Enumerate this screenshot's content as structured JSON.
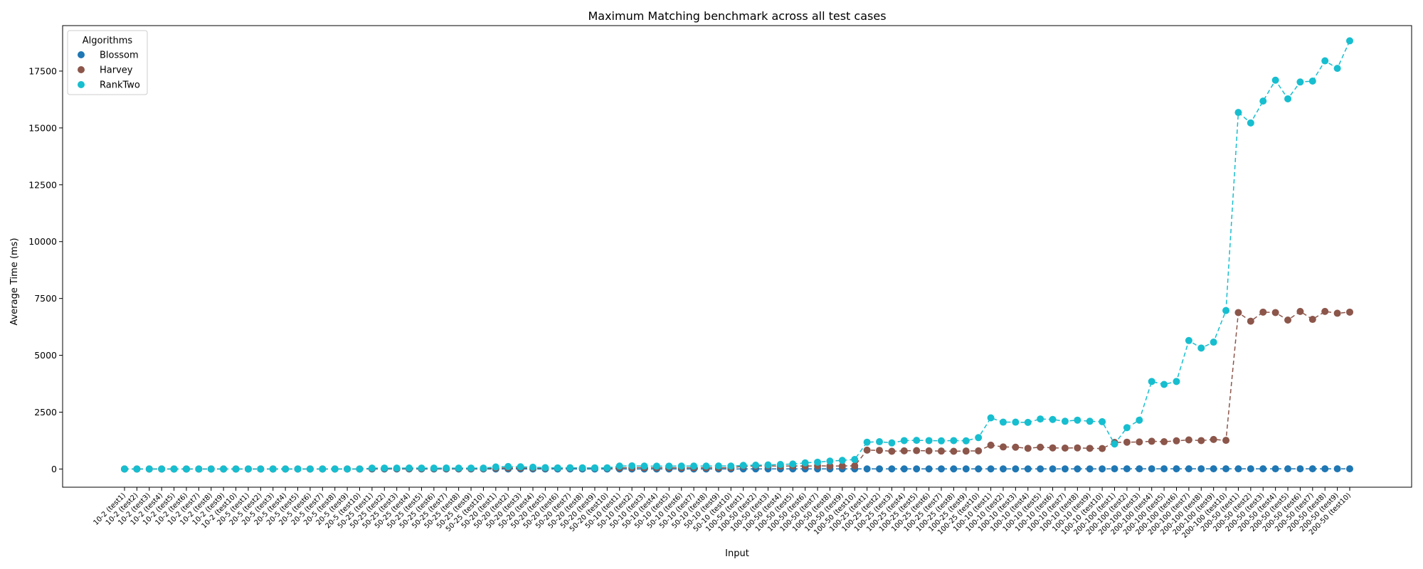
{
  "chart_data": {
    "type": "line",
    "title": "Maximum Matching benchmark across all test cases",
    "xlabel": "Input",
    "ylabel": "Average Time (ms)",
    "ylim": [
      -800,
      19500
    ],
    "yticks": [
      0,
      2500,
      5000,
      7500,
      10000,
      12500,
      15000,
      17500
    ],
    "grid": false,
    "legend": {
      "title": "Algorithms",
      "placement": "top-left"
    },
    "categories": [
      "10-2 (test1)",
      "10-2 (test2)",
      "10-2 (test3)",
      "10-2 (test4)",
      "10-2 (test5)",
      "10-2 (test6)",
      "10-2 (test7)",
      "10-2 (test8)",
      "10-2 (test9)",
      "10-2 (test10)",
      "20-5 (test1)",
      "20-5 (test2)",
      "20-5 (test3)",
      "20-5 (test4)",
      "20-5 (test5)",
      "20-5 (test6)",
      "20-5 (test7)",
      "20-5 (test8)",
      "20-5 (test9)",
      "20-5 (test10)",
      "50-25 (test1)",
      "50-25 (test2)",
      "50-25 (test3)",
      "50-25 (test4)",
      "50-25 (test5)",
      "50-25 (test6)",
      "50-25 (test7)",
      "50-25 (test8)",
      "50-25 (test9)",
      "50-25 (test10)",
      "50-20 (test1)",
      "50-20 (test2)",
      "50-20 (test3)",
      "50-20 (test4)",
      "50-20 (test5)",
      "50-20 (test6)",
      "50-20 (test7)",
      "50-20 (test8)",
      "50-20 (test9)",
      "50-20 (test10)",
      "50-10 (test1)",
      "50-10 (test2)",
      "50-10 (test3)",
      "50-10 (test4)",
      "50-10 (test5)",
      "50-10 (test6)",
      "50-10 (test7)",
      "50-10 (test8)",
      "50-10 (test9)",
      "50-10 (test10)",
      "100-50 (test1)",
      "100-50 (test2)",
      "100-50 (test3)",
      "100-50 (test4)",
      "100-50 (test5)",
      "100-50 (test6)",
      "100-50 (test7)",
      "100-50 (test8)",
      "100-50 (test9)",
      "100-50 (test10)",
      "100-25 (test1)",
      "100-25 (test2)",
      "100-25 (test3)",
      "100-25 (test4)",
      "100-25 (test5)",
      "100-25 (test6)",
      "100-25 (test7)",
      "100-25 (test8)",
      "100-25 (test9)",
      "100-25 (test10)",
      "100-10 (test1)",
      "100-10 (test2)",
      "100-10 (test3)",
      "100-10 (test4)",
      "100-10 (test5)",
      "100-10 (test6)",
      "100-10 (test7)",
      "100-10 (test8)",
      "100-10 (test9)",
      "100-10 (test10)",
      "200-100 (test1)",
      "200-100 (test2)",
      "200-100 (test3)",
      "200-100 (test4)",
      "200-100 (test5)",
      "200-100 (test6)",
      "200-100 (test7)",
      "200-100 (test8)",
      "200-100 (test9)",
      "200-100 (test10)",
      "200-50 (test1)",
      "200-50 (test2)",
      "200-50 (test3)",
      "200-50 (test4)",
      "200-50 (test5)",
      "200-50 (test6)",
      "200-50 (test7)",
      "200-50 (test8)",
      "200-50 (test9)",
      "200-50 (test10)"
    ],
    "series": [
      {
        "name": "Blossom",
        "color": "#1f77b4",
        "values": [
          0,
          0,
          0,
          0,
          0,
          0,
          0,
          0,
          0,
          0,
          0,
          0,
          0,
          0,
          0,
          0,
          0,
          0,
          0,
          0,
          2,
          2,
          2,
          2,
          2,
          2,
          2,
          2,
          2,
          2,
          2,
          2,
          2,
          2,
          2,
          2,
          2,
          2,
          2,
          2,
          2,
          2,
          2,
          2,
          2,
          2,
          2,
          2,
          2,
          2,
          5,
          5,
          5,
          5,
          5,
          5,
          5,
          5,
          5,
          5,
          5,
          5,
          5,
          5,
          5,
          5,
          5,
          5,
          5,
          5,
          5,
          5,
          5,
          5,
          5,
          5,
          5,
          5,
          5,
          5,
          10,
          10,
          10,
          10,
          10,
          10,
          10,
          10,
          10,
          10,
          10,
          10,
          10,
          10,
          10,
          10,
          10,
          10,
          10,
          10
        ]
      },
      {
        "name": "Harvey",
        "color": "#8c564b",
        "values": [
          0,
          0,
          0,
          0,
          0,
          0,
          0,
          0,
          0,
          0,
          2,
          2,
          2,
          2,
          2,
          2,
          2,
          2,
          2,
          2,
          20,
          22,
          20,
          21,
          20,
          22,
          20,
          21,
          20,
          22,
          40,
          50,
          45,
          40,
          42,
          40,
          41,
          40,
          43,
          40,
          55,
          60,
          58,
          57,
          56,
          58,
          57,
          58,
          57,
          58,
          120,
          130,
          140,
          125,
          135,
          130,
          140,
          130,
          135,
          140,
          830,
          820,
          780,
          800,
          810,
          800,
          790,
          780,
          790,
          800,
          1050,
          970,
          960,
          910,
          960,
          930,
          920,
          930,
          910,
          900,
          1170,
          1180,
          1190,
          1220,
          1200,
          1240,
          1280,
          1250,
          1300,
          1260,
          6880,
          6500,
          6900,
          6880,
          6550,
          6930,
          6580,
          6930,
          6850,
          6900
        ]
      },
      {
        "name": "RankTwo",
        "color": "#17becf",
        "values": [
          0,
          0,
          0,
          0,
          0,
          0,
          0,
          0,
          0,
          0,
          2,
          2,
          2,
          2,
          2,
          2,
          2,
          2,
          2,
          2,
          40,
          42,
          40,
          45,
          42,
          40,
          43,
          41,
          42,
          40,
          90,
          110,
          100,
          80,
          60,
          50,
          55,
          52,
          50,
          52,
          130,
          140,
          130,
          125,
          128,
          130,
          132,
          130,
          135,
          130,
          160,
          170,
          180,
          200,
          220,
          270,
          300,
          350,
          380,
          420,
          1180,
          1200,
          1150,
          1250,
          1260,
          1250,
          1240,
          1250,
          1240,
          1380,
          2250,
          2060,
          2060,
          2050,
          2200,
          2180,
          2100,
          2150,
          2100,
          2080,
          1100,
          1820,
          2150,
          3850,
          3720,
          3850,
          5650,
          5320,
          5580,
          6970,
          15680,
          15220,
          16180,
          17100,
          16280,
          17020,
          17060,
          17950,
          17620,
          18830
        ]
      }
    ]
  }
}
